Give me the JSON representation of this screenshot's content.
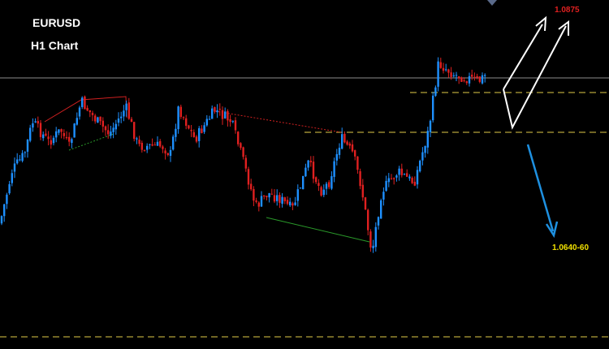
{
  "header": {
    "symbol": "EURUSD",
    "timeframe": "H1 Chart"
  },
  "levels": {
    "target_up": "1.0875",
    "target_down": "1.0640-60"
  }
}
